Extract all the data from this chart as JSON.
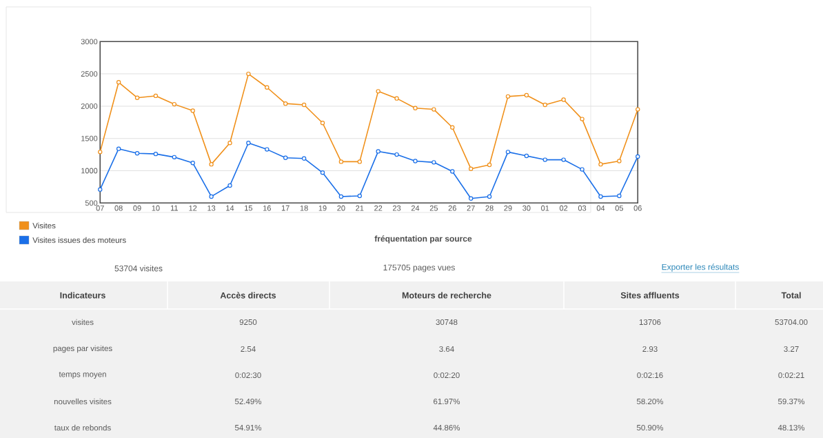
{
  "chart_data": [
    {
      "type": "line",
      "categories": [
        "07",
        "08",
        "09",
        "10",
        "11",
        "12",
        "13",
        "14",
        "15",
        "16",
        "17",
        "18",
        "19",
        "20",
        "21",
        "22",
        "23",
        "24",
        "25",
        "26",
        "27",
        "28",
        "29",
        "30",
        "01",
        "02",
        "03",
        "04",
        "05",
        "06"
      ],
      "series": [
        {
          "name": "Visites",
          "color": "#f0901a",
          "values": [
            1290,
            2370,
            2130,
            2160,
            2030,
            1930,
            1100,
            1430,
            2500,
            2290,
            2040,
            2020,
            1740,
            1140,
            1140,
            2230,
            2120,
            1970,
            1950,
            1670,
            1030,
            1090,
            2150,
            2170,
            2020,
            2100,
            1800,
            1100,
            1150,
            1950
          ]
        },
        {
          "name": "Visites issues des moteurs",
          "color": "#1a6fe8",
          "values": [
            710,
            1340,
            1270,
            1260,
            1210,
            1120,
            600,
            770,
            1430,
            1330,
            1200,
            1190,
            970,
            600,
            610,
            1300,
            1250,
            1150,
            1130,
            990,
            570,
            600,
            1290,
            1230,
            1170,
            1170,
            1020,
            600,
            610,
            1220
          ]
        }
      ],
      "ylim": [
        500,
        3000
      ],
      "yticks": [
        500,
        1000,
        1500,
        2000,
        2500,
        3000
      ],
      "grid": "y",
      "legend": "bottom left",
      "marker": "circle",
      "line_style": "solid"
    },
    {
      "type": "other",
      "title": "fréquentation par source",
      "annotations": [
        "53704 visites",
        "175705 pages vues",
        "Exporter les résultats"
      ],
      "ylabel": "Indicateurs",
      "categories": [
        "Accès directs",
        "Moteurs de recherche",
        "Sites affluents",
        "Total"
      ],
      "y_categories": [
        "visites",
        "pages par visites",
        "temps moyen",
        "nouvelles visites",
        "taux de rebonds"
      ],
      "cell_labels": [
        [
          "9250",
          "30748",
          "13706",
          "53704.00"
        ],
        [
          "2.54",
          "3.64",
          "2.93",
          "3.27"
        ],
        [
          "0:02:30",
          "0:02:20",
          "0:02:16",
          "0:02:21"
        ],
        [
          "52.49%",
          "61.97%",
          "58.20%",
          "59.37%"
        ],
        [
          "54.91%",
          "44.86%",
          "50.90%",
          "48.13%"
        ]
      ]
    }
  ]
}
